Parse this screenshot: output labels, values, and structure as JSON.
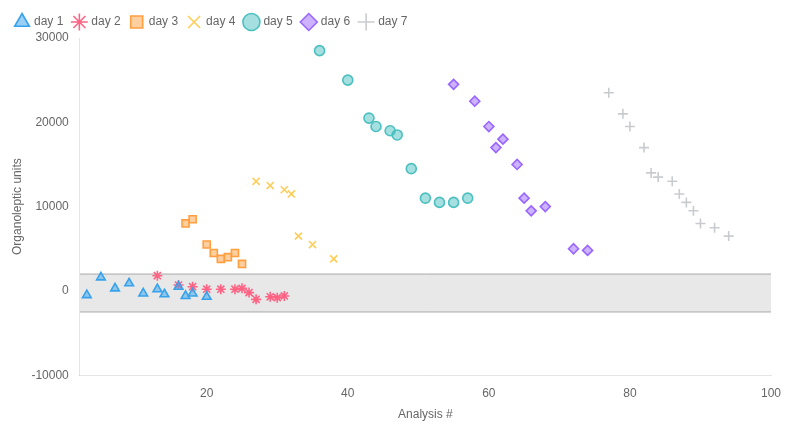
{
  "chart_data": {
    "type": "scatter",
    "xlabel": "Analysis #",
    "ylabel": "Organoleptic units",
    "xlim": [
      2,
      100
    ],
    "ylim": [
      -10000,
      30000
    ],
    "xticks": [
      20,
      40,
      60,
      80,
      100
    ],
    "yticks": [
      -10000,
      0,
      10000,
      20000,
      30000
    ],
    "grid": false,
    "legend": "upper left",
    "band": {
      "from": -2500,
      "to": 2000,
      "color": "#e8e8e8",
      "line_color": "#aaaaaa"
    },
    "series": [
      {
        "name": "day 1",
        "marker": "triangle",
        "x": [
          3,
          5,
          7,
          9,
          11,
          13,
          14,
          16,
          17,
          18,
          20
        ],
        "values": [
          -500,
          1600,
          300,
          900,
          -300,
          200,
          -400,
          500,
          -600,
          -300,
          -700
        ]
      },
      {
        "name": "day 2",
        "marker": "asterisk",
        "x": [
          13,
          16,
          18,
          20,
          22,
          24,
          25,
          26,
          27,
          29,
          30,
          31
        ],
        "values": [
          1800,
          700,
          500,
          200,
          200,
          200,
          300,
          -200,
          -1000,
          -700,
          -800,
          -600
        ]
      },
      {
        "name": "day 3",
        "marker": "square",
        "x": [
          17,
          18,
          20,
          21,
          22,
          23,
          24,
          25
        ],
        "values": [
          8000,
          8500,
          5500,
          4500,
          3800,
          4000,
          4500,
          3200
        ]
      },
      {
        "name": "day 4",
        "marker": "x",
        "x": [
          27,
          29,
          31,
          32,
          33,
          35,
          38
        ],
        "values": [
          13000,
          12500,
          12000,
          11500,
          6500,
          5500,
          3800
        ]
      },
      {
        "name": "day 5",
        "marker": "circle",
        "x": [
          36,
          40,
          43,
          44,
          46,
          47,
          49,
          51,
          53,
          55,
          57
        ],
        "values": [
          28500,
          25000,
          20500,
          19500,
          19000,
          18500,
          14500,
          11000,
          10500,
          10500,
          11000
        ]
      },
      {
        "name": "day 6",
        "marker": "diamond",
        "x": [
          55,
          58,
          60,
          61,
          62,
          64,
          65,
          66,
          68,
          72,
          74
        ],
        "values": [
          24500,
          22500,
          19500,
          17000,
          18000,
          15000,
          11000,
          9500,
          10000,
          5000,
          4800
        ]
      },
      {
        "name": "day 7",
        "marker": "plus",
        "x": [
          77,
          79,
          80,
          82,
          83,
          84,
          86,
          87,
          88,
          89,
          90,
          92,
          94
        ],
        "values": [
          23500,
          21000,
          19500,
          17000,
          14000,
          13500,
          13000,
          11500,
          10500,
          9500,
          8000,
          7500,
          6500
        ]
      }
    ]
  }
}
